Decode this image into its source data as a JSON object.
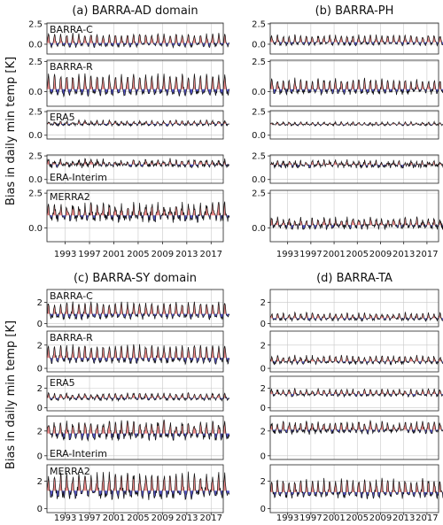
{
  "ylabel": "Bias in daily min temp [K]",
  "colors": {
    "positive": "#f08080",
    "negative": "#4040c0",
    "line": "#111111",
    "grid": "#c8c8c8"
  },
  "x_ticks": [
    "1993",
    "1997",
    "2001",
    "2005",
    "2009",
    "2013",
    "2017"
  ],
  "chart_data": [
    {
      "type": "area",
      "title": "(a) BARRA-AD domain",
      "xlim": [
        1990,
        2019
      ],
      "grid": true,
      "subplots": [
        {
          "label": "BARRA-C",
          "ylim": [
            -1.2,
            2.6
          ],
          "yticks": [
            0,
            2.5
          ],
          "ytick_labels": [
            "0.0",
            "2.5"
          ],
          "mean": 0.15,
          "amp": 0.75,
          "noise": 0.2
        },
        {
          "label": "BARRA-R",
          "ylim": [
            -1.2,
            2.6
          ],
          "yticks": [
            0,
            2.5
          ],
          "ytick_labels": [
            "0.0",
            "2.5"
          ],
          "mean": 0.2,
          "amp": 0.8,
          "noise": 0.2
        },
        {
          "label": "ERA5",
          "ylim": [
            -0.4,
            2.6
          ],
          "yticks": [
            0,
            2.5
          ],
          "ytick_labels": [
            "0.0",
            "2.5"
          ],
          "mean": 1.2,
          "amp": 0.2,
          "noise": 0.15
        },
        {
          "label": "ERA-Interim",
          "ylim": [
            -0.4,
            2.6
          ],
          "yticks": [
            0,
            2.5
          ],
          "ytick_labels": [
            "0.0",
            "2.5"
          ],
          "mean": 1.6,
          "amp": 0.3,
          "noise": 0.25
        },
        {
          "label": "MERRA2",
          "ylim": [
            -1.0,
            2.7
          ],
          "yticks": [
            0,
            2.5
          ],
          "ytick_labels": [
            "0.0",
            "2.5"
          ],
          "mean": 0.9,
          "amp": 0.5,
          "noise": 0.3
        }
      ]
    },
    {
      "type": "area",
      "title": "(b) BARRA-PH",
      "xlim": [
        1990,
        2019
      ],
      "grid": true,
      "subplots": [
        {
          "label": "",
          "ylim": [
            -1.2,
            2.6
          ],
          "yticks": [
            0,
            2.5
          ],
          "ytick_labels": [
            "0.0",
            "2.5"
          ],
          "mean": 0.25,
          "amp": 0.55,
          "noise": 0.2
        },
        {
          "label": "",
          "ylim": [
            -1.2,
            2.6
          ],
          "yticks": [
            0,
            2.5
          ],
          "ytick_labels": [
            "0.0",
            "2.5"
          ],
          "mean": 0.2,
          "amp": 0.55,
          "noise": 0.2
        },
        {
          "label": "",
          "ylim": [
            -0.4,
            2.6
          ],
          "yticks": [
            0,
            2.5
          ],
          "ytick_labels": [
            "0.0",
            "2.5"
          ],
          "mean": 1.15,
          "amp": 0.15,
          "noise": 0.1
        },
        {
          "label": "",
          "ylim": [
            -0.4,
            2.6
          ],
          "yticks": [
            0,
            2.5
          ],
          "ytick_labels": [
            "0.0",
            "2.5"
          ],
          "mean": 1.55,
          "amp": 0.25,
          "noise": 0.25
        },
        {
          "label": "",
          "ylim": [
            -1.0,
            2.7
          ],
          "yticks": [
            0,
            2.5
          ],
          "ytick_labels": [
            "0.0",
            "2.5"
          ],
          "mean": 0.2,
          "amp": 0.3,
          "noise": 0.2
        }
      ]
    },
    {
      "type": "area",
      "title": "(c) BARRA-SY domain",
      "xlim": [
        1990,
        2019
      ],
      "grid": true,
      "subplots": [
        {
          "label": "BARRA-C",
          "ylim": [
            -0.3,
            3.2
          ],
          "yticks": [
            0,
            2
          ],
          "ytick_labels": [
            "0",
            "2"
          ],
          "mean": 0.9,
          "amp": 0.7,
          "noise": 0.2
        },
        {
          "label": "BARRA-R",
          "ylim": [
            -0.3,
            3.2
          ],
          "yticks": [
            0,
            2
          ],
          "ytick_labels": [
            "0",
            "2"
          ],
          "mean": 0.9,
          "amp": 0.7,
          "noise": 0.2
        },
        {
          "label": "ERA5",
          "ylim": [
            -0.3,
            3.2
          ],
          "yticks": [
            0,
            2
          ],
          "ytick_labels": [
            "0",
            "2"
          ],
          "mean": 1.0,
          "amp": 0.3,
          "noise": 0.15
        },
        {
          "label": "ERA-Interim",
          "ylim": [
            -0.3,
            3.2
          ],
          "yticks": [
            0,
            2
          ],
          "ytick_labels": [
            "0",
            "2"
          ],
          "mean": 1.8,
          "amp": 0.6,
          "noise": 0.3
        },
        {
          "label": "MERRA2",
          "ylim": [
            -0.3,
            3.2
          ],
          "yticks": [
            0,
            2
          ],
          "ytick_labels": [
            "0",
            "2"
          ],
          "mean": 1.3,
          "amp": 0.8,
          "noise": 0.3
        }
      ]
    },
    {
      "type": "area",
      "title": "(d) BARRA-TA",
      "xlim": [
        1990,
        2019
      ],
      "grid": true,
      "subplots": [
        {
          "label": "",
          "ylim": [
            -0.3,
            3.2
          ],
          "yticks": [
            0,
            2
          ],
          "ytick_labels": [
            "0",
            "2"
          ],
          "mean": 0.5,
          "amp": 0.3,
          "noise": 0.15
        },
        {
          "label": "",
          "ylim": [
            -0.3,
            3.2
          ],
          "yticks": [
            0,
            2
          ],
          "ytick_labels": [
            "0",
            "2"
          ],
          "mean": 0.6,
          "amp": 0.3,
          "noise": 0.15
        },
        {
          "label": "",
          "ylim": [
            -0.3,
            3.2
          ],
          "yticks": [
            0,
            2
          ],
          "ytick_labels": [
            "0",
            "2"
          ],
          "mean": 1.4,
          "amp": 0.3,
          "noise": 0.15
        },
        {
          "label": "",
          "ylim": [
            -0.3,
            3.2
          ],
          "yticks": [
            0,
            2
          ],
          "ytick_labels": [
            "0",
            "2"
          ],
          "mean": 2.1,
          "amp": 0.4,
          "noise": 0.2
        },
        {
          "label": "",
          "ylim": [
            -0.3,
            3.2
          ],
          "yticks": [
            0,
            2
          ],
          "ytick_labels": [
            "0",
            "2"
          ],
          "mean": 1.2,
          "amp": 0.6,
          "noise": 0.2
        }
      ]
    }
  ]
}
